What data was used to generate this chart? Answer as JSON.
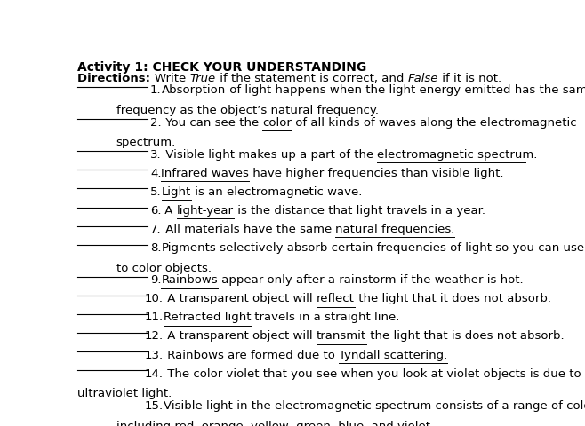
{
  "title": "Activity 1: CHECK YOUR UNDERSTANDING",
  "bg_color": "#ffffff",
  "text_color": "#000000",
  "font_size": 9.5,
  "title_font_size": 10,
  "items": [
    {
      "num": "1.",
      "pre": "",
      "underline_word": "Absorption",
      "rest": " of light happens when the light energy emitted has the same",
      "continuation": "frequency as the object’s natural frequency.",
      "has_continuation": true,
      "indent_continuation": true,
      "continuation_underline": false
    },
    {
      "num": "2.",
      "pre": " You can see the ",
      "underline_word": "color",
      "rest": " of all kinds of waves along the electromagnetic",
      "continuation": "spectrum.",
      "has_continuation": true,
      "indent_continuation": true,
      "continuation_underline": false
    },
    {
      "num": "3.",
      "pre": " Visible light makes up a part of the ",
      "underline_word": "electromagnetic spectrum.",
      "rest": "",
      "has_continuation": false,
      "indent_continuation": false,
      "continuation_underline": false
    },
    {
      "num": "4.",
      "pre": "",
      "underline_word": "Infrared waves",
      "rest": " have higher frequencies than visible light.",
      "has_continuation": false,
      "indent_continuation": false,
      "continuation_underline": false
    },
    {
      "num": "5.",
      "pre": "",
      "underline_word": "Light",
      "rest": " is an electromagnetic wave.",
      "has_continuation": false,
      "indent_continuation": false,
      "continuation_underline": false
    },
    {
      "num": "6.",
      "pre": " A ",
      "underline_word": "light-year",
      "rest": " is the distance that light travels in a year.",
      "has_continuation": false,
      "indent_continuation": false,
      "continuation_underline": false
    },
    {
      "num": "7.",
      "pre": " All materials have the same ",
      "underline_word": "natural frequencies.",
      "rest": "",
      "has_continuation": false,
      "indent_continuation": false,
      "continuation_underline": false
    },
    {
      "num": "8.",
      "pre": "",
      "underline_word": "Pigments",
      "rest": " selectively absorb certain frequencies of light so you can use them",
      "continuation": "to color objects.",
      "has_continuation": true,
      "indent_continuation": true,
      "continuation_underline": false
    },
    {
      "num": "9.",
      "pre": "",
      "underline_word": "Rainbows",
      "rest": " appear only after a rainstorm if the weather is hot.",
      "has_continuation": false,
      "indent_continuation": false,
      "continuation_underline": false
    },
    {
      "num": "10.",
      "pre": " A transparent object will ",
      "underline_word": "reflect",
      "rest": " the light that it does not absorb.",
      "has_continuation": false,
      "indent_continuation": false,
      "continuation_underline": false
    },
    {
      "num": "11.",
      "pre": "",
      "underline_word": "Refracted light",
      "rest": " travels in a straight line.",
      "has_continuation": false,
      "indent_continuation": false,
      "continuation_underline": false
    },
    {
      "num": "12.",
      "pre": " A transparent object will ",
      "underline_word": "transmit",
      "rest": " the light that is does not absorb.",
      "has_continuation": false,
      "indent_continuation": false,
      "continuation_underline": false
    },
    {
      "num": "13.",
      "pre": " Rainbows are formed due to ",
      "underline_word": "Tyndall scattering.",
      "rest": "",
      "has_continuation": false,
      "indent_continuation": false,
      "continuation_underline": false
    },
    {
      "num": "14.",
      "pre": " The color violet that you see when you look at violet objects is due to",
      "underline_word": "",
      "rest": "",
      "continuation": "ultraviolet light.",
      "has_continuation": true,
      "indent_continuation": false,
      "continuation_underline": true
    },
    {
      "num": "15.",
      "pre": "",
      "underline_word": "Visible light",
      "rest": " in the electromagnetic spectrum consists of a range of colors",
      "continuation": "including red, orange, yellow, green, blue, and violet.",
      "has_continuation": true,
      "indent_continuation": true,
      "continuation_underline": false
    }
  ]
}
